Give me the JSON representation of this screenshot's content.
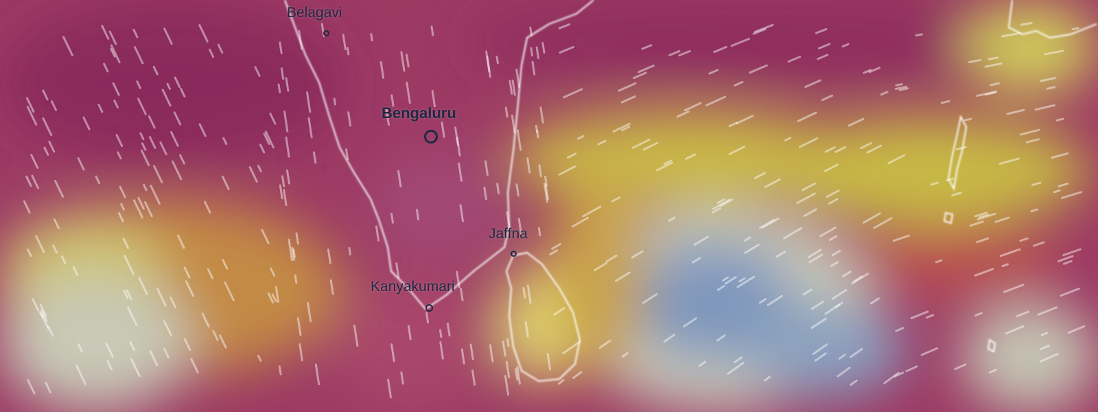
{
  "map": {
    "layer": "wind",
    "colors": {
      "high": "#8e2b5e",
      "mid": "#c9b43c",
      "low": "#7f97bd",
      "neutral": "#c4c4b2",
      "coast": "#ffffff",
      "label": "#1f2a44"
    },
    "cities": [
      {
        "name": "Belagavi",
        "marker": "small"
      },
      {
        "name": "Bengaluru",
        "marker": "large"
      },
      {
        "name": "Jaffna",
        "marker": "small"
      },
      {
        "name": "Kanyakumari",
        "marker": "small"
      }
    ]
  }
}
